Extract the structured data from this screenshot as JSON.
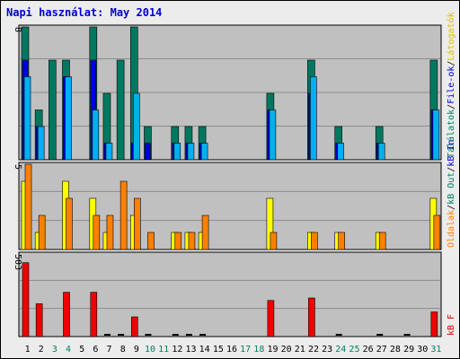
{
  "title": "Napi használat: May 2014",
  "right_legend": {
    "top": [
      {
        "text": "Találatok",
        "color": "#008060"
      },
      {
        "text": "File-ok",
        "color": "#0000c0"
      },
      {
        "text": "Látogatók",
        "color": "#e0c000"
      }
    ],
    "middle": [
      {
        "text": "Oldalak",
        "color": "#ff8000"
      },
      {
        "text": "kB Out",
        "color": "#008060"
      },
      {
        "text": "kB In",
        "color": "#0000c0"
      }
    ],
    "bottom": [
      {
        "text": "kB F",
        "color": "#e00000"
      }
    ]
  },
  "colors": {
    "hits": "#007860",
    "files": "#0000e0",
    "pages": "#00b0f0",
    "visits": "#ffff00",
    "sites": "#ff8000",
    "kbytes": "#f00000",
    "panel_bg": "#c0c0c0",
    "weekday": "#000000",
    "weekend": "#008060"
  },
  "chart_data": [
    {
      "type": "bar",
      "panel": "top",
      "axis_max_label": "8",
      "ylim": [
        0,
        8
      ],
      "categories": [
        "1",
        "2",
        "3",
        "4",
        "5",
        "6",
        "7",
        "8",
        "9",
        "10",
        "11",
        "12",
        "13",
        "14",
        "15",
        "16",
        "17",
        "18",
        "19",
        "20",
        "21",
        "22",
        "23",
        "24",
        "25",
        "26",
        "27",
        "28",
        "29",
        "30",
        "31"
      ],
      "weekend": [
        3,
        4,
        10,
        11,
        17,
        18,
        24,
        25,
        31
      ],
      "series": [
        {
          "name": "Találatok",
          "values": [
            8,
            3,
            6,
            6,
            0,
            8,
            4,
            6,
            8,
            2,
            0,
            2,
            2,
            2,
            0,
            0,
            0,
            0,
            4,
            0,
            0,
            6,
            0,
            2,
            0,
            0,
            2,
            0,
            0,
            0,
            6
          ]
        },
        {
          "name": "File-ok",
          "values": [
            6,
            2,
            0,
            5,
            0,
            6,
            1,
            0,
            1,
            1,
            0,
            1,
            1,
            1,
            0,
            0,
            0,
            0,
            3,
            0,
            0,
            4,
            0,
            1,
            0,
            0,
            1,
            0,
            0,
            0,
            3
          ]
        },
        {
          "name": "Oldalak",
          "values": [
            5,
            2,
            0,
            5,
            0,
            3,
            1,
            0,
            4,
            0,
            0,
            1,
            1,
            1,
            0,
            0,
            0,
            0,
            3,
            0,
            0,
            5,
            0,
            1,
            0,
            0,
            1,
            0,
            0,
            0,
            3
          ]
        }
      ]
    },
    {
      "type": "bar",
      "panel": "middle",
      "axis_max_label": "5",
      "ylim": [
        0,
        5
      ],
      "series": [
        {
          "name": "Látogatók",
          "values": [
            4,
            1,
            0,
            4,
            0,
            3,
            1,
            0,
            2,
            0,
            0,
            1,
            1,
            1,
            0,
            0,
            0,
            0,
            3,
            0,
            0,
            1,
            0,
            1,
            0,
            0,
            1,
            0,
            0,
            0,
            3
          ]
        },
        {
          "name": "Oldalak",
          "values": [
            5,
            2,
            0,
            3,
            0,
            2,
            2,
            4,
            3,
            1,
            0,
            1,
            1,
            2,
            0,
            0,
            0,
            0,
            1,
            0,
            0,
            1,
            0,
            1,
            0,
            0,
            1,
            0,
            0,
            0,
            2
          ]
        }
      ]
    },
    {
      "type": "bar",
      "panel": "bottom",
      "axis_max_label": "503",
      "ylim": [
        0,
        503
      ],
      "series": [
        {
          "name": "kB F",
          "values": [
            450,
            200,
            0,
            270,
            0,
            270,
            5,
            5,
            120,
            5,
            0,
            5,
            5,
            5,
            0,
            0,
            0,
            0,
            220,
            0,
            0,
            235,
            0,
            5,
            0,
            0,
            5,
            0,
            5,
            0,
            150
          ]
        }
      ]
    }
  ]
}
